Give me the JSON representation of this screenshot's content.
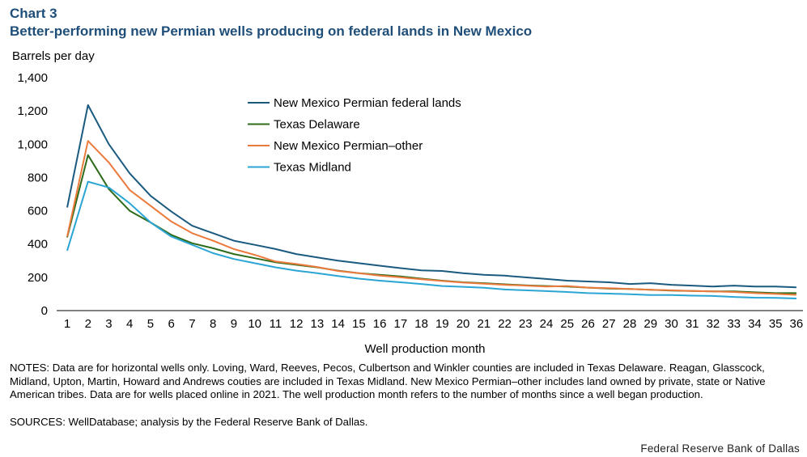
{
  "header": {
    "chart_number": "Chart 3",
    "title": "Better-performing new Permian wells producing on federal lands in New Mexico"
  },
  "notes": "NOTES: Data are for horizontal wells only. Loving, Ward, Reeves, Pecos, Culbertson and Winkler counties are included in Texas Delaware. Reagan, Glasscock, Midland, Upton, Martin, Howard and Andrews couties are included in Texas Midland. New Mexico Permian–other includes land owned by private, state or Native American tribes. Data are for wells placed online in 2021. The well production month refers to the number of months since a well began production.",
  "sources": "SOURCES: WellDatabase; analysis by the Federal Reserve Bank of Dallas.",
  "footer": "Federal Reserve Bank of Dallas",
  "chart_data": {
    "type": "line",
    "ylabel": "Barrels per day",
    "xlabel": "Well production month",
    "ylim": [
      0,
      1400
    ],
    "yticks": [
      0,
      200,
      400,
      600,
      800,
      "1,000",
      "1,200",
      "1,400"
    ],
    "grid": false,
    "legend_position": "top-center",
    "x": [
      1,
      2,
      3,
      4,
      5,
      6,
      7,
      8,
      9,
      10,
      11,
      12,
      13,
      14,
      15,
      16,
      17,
      18,
      19,
      20,
      21,
      22,
      23,
      24,
      25,
      26,
      27,
      28,
      29,
      30,
      31,
      32,
      33,
      34,
      35,
      36
    ],
    "series": [
      {
        "name": "New Mexico Permian federal lands",
        "color": "#1b5a7f",
        "values": [
          620,
          1235,
          1000,
          825,
          690,
          595,
          510,
          465,
          420,
          395,
          370,
          340,
          320,
          300,
          285,
          270,
          255,
          242,
          238,
          225,
          215,
          210,
          200,
          190,
          180,
          175,
          170,
          160,
          165,
          155,
          150,
          145,
          150,
          145,
          145,
          140
        ]
      },
      {
        "name": "Texas Delaware",
        "color": "#2e6b1a",
        "values": [
          440,
          935,
          730,
          600,
          530,
          455,
          405,
          375,
          340,
          315,
          290,
          275,
          260,
          240,
          225,
          215,
          205,
          192,
          180,
          170,
          165,
          158,
          152,
          148,
          145,
          138,
          132,
          130,
          125,
          120,
          118,
          115,
          115,
          110,
          105,
          105
        ]
      },
      {
        "name": "New Mexico Permian–other",
        "color": "#ec7a3c",
        "values": [
          445,
          1020,
          890,
          725,
          630,
          535,
          465,
          420,
          370,
          335,
          295,
          280,
          262,
          238,
          225,
          210,
          200,
          188,
          178,
          168,
          162,
          155,
          150,
          145,
          148,
          138,
          135,
          130,
          125,
          122,
          118,
          115,
          112,
          105,
          100,
          95
        ]
      },
      {
        "name": "Texas Midland",
        "color": "#2aa5d4",
        "values": [
          360,
          775,
          740,
          645,
          530,
          445,
          395,
          345,
          310,
          285,
          260,
          240,
          225,
          208,
          192,
          180,
          170,
          160,
          148,
          143,
          137,
          127,
          122,
          117,
          112,
          105,
          102,
          98,
          94,
          94,
          90,
          88,
          82,
          78,
          77,
          73
        ]
      }
    ]
  }
}
